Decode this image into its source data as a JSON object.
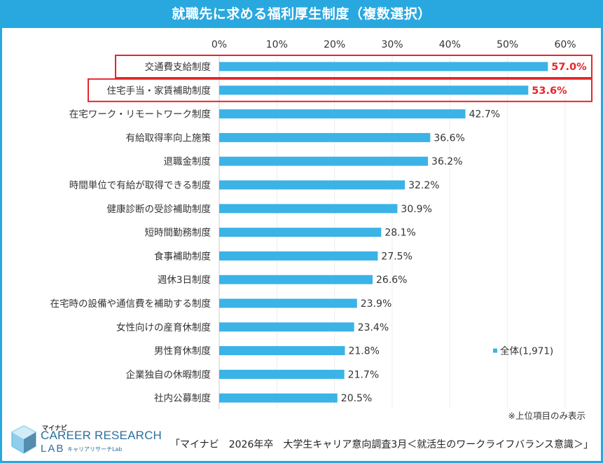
{
  "title": "就職先に求める福利厚生制度（複数選択）",
  "colors": {
    "accent": "#29a8e0",
    "bar": "#3bb3e6",
    "highlight": "#e5262a",
    "axis": "#cccccc",
    "text": "#333333"
  },
  "chart_data": {
    "type": "bar",
    "orientation": "horizontal",
    "title": "就職先に求める福利厚生制度（複数選択）",
    "xlim": [
      0,
      60
    ],
    "ticks": [
      0,
      10,
      20,
      30,
      40,
      50,
      60
    ],
    "tick_labels": [
      "0%",
      "10%",
      "20%",
      "30%",
      "40%",
      "50%",
      "60%"
    ],
    "categories": [
      "交通費支給制度",
      "住宅手当・家賃補助制度",
      "在宅ワーク・リモートワーク制度",
      "有給取得率向上施策",
      "退職金制度",
      "時間単位で有給が取得できる制度",
      "健康診断の受診補助制度",
      "短時間勤務制度",
      "食事補助制度",
      "週休3日制度",
      "在宅時の設備や通信費を補助する制度",
      "女性向けの産育休制度",
      "男性育休制度",
      "企業独自の休暇制度",
      "社内公募制度"
    ],
    "series": [
      {
        "name": "全体(1,971)",
        "values": [
          57.0,
          53.6,
          42.7,
          36.6,
          36.2,
          32.2,
          30.9,
          28.1,
          27.5,
          26.6,
          23.9,
          23.4,
          21.8,
          21.7,
          20.5
        ],
        "labels": [
          "57.0%",
          "53.6%",
          "42.7%",
          "36.6%",
          "36.2%",
          "32.2%",
          "30.9%",
          "28.1%",
          "27.5%",
          "26.6%",
          "23.9%",
          "23.4%",
          "21.8%",
          "21.7%",
          "20.5%"
        ]
      }
    ],
    "highlighted": [
      0,
      1
    ],
    "legend": "全体(1,971)",
    "legend_position": "right",
    "note": "※上位項目のみ表示"
  },
  "logo": {
    "small": "マイナビ",
    "main": "CAREER RESEARCH",
    "lab": "LAB",
    "sub": "キャリアリサーチLab"
  },
  "source": "「マイナビ　2026年卒　大学生キャリア意向調査3月＜就活生のワークライフバランス意識＞」"
}
